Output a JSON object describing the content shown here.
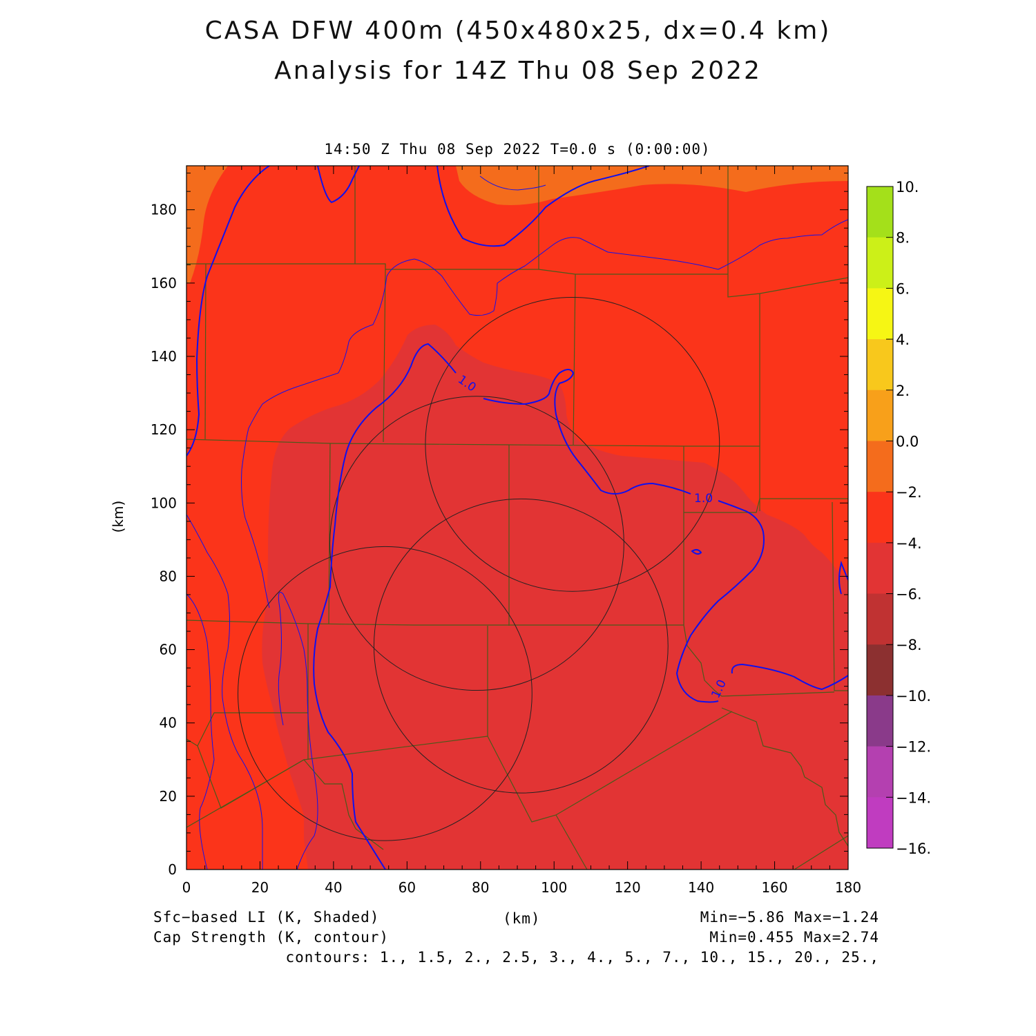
{
  "header": {
    "title_line1": "CASA DFW 400m (450x480x25, dx=0.4 km)",
    "title_line2": "Analysis for 14Z Thu 08 Sep 2022",
    "subtitle": "14:50 Z Thu 08 Sep 2022    T=0.0 s (0:00:00)"
  },
  "axes": {
    "x_label": "(km)",
    "y_label": "(km)",
    "x_ticks": [
      "0",
      "20",
      "40",
      "60",
      "80",
      "100",
      "120",
      "140",
      "160",
      "180"
    ],
    "y_ticks": [
      "0",
      "20",
      "40",
      "60",
      "80",
      "100",
      "120",
      "140",
      "160",
      "180"
    ],
    "x_range": [
      0,
      180
    ],
    "y_range": [
      0,
      192
    ]
  },
  "colorbar": {
    "labels": [
      "10.",
      "8.",
      "6.",
      "4.",
      "2.",
      "0.0",
      "−2.",
      "−4.",
      "−6.",
      "−8.",
      "−10.",
      "−12.",
      "−14.",
      "−16."
    ],
    "colors": [
      "#a4e01a",
      "#ccf018",
      "#f6f614",
      "#f8c81c",
      "#f8a01a",
      "#f46c1c",
      "#fb341a",
      "#e23434",
      "#c03232",
      "#8c3030",
      "#8a3a8a",
      "#b440b0",
      "#c03cc0",
      "#d83ee0"
    ]
  },
  "fields": {
    "field_colors": {
      "outer": "#fb341a",
      "inner": "#e23434",
      "edge": "#f46c1c"
    },
    "contour_color": "#1010ee",
    "contour_value_label": "1.0"
  },
  "footer": {
    "left_line1": "Sfc−based LI (K, Shaded)",
    "left_line2": "Cap Strength (K, contour)",
    "center": "(km)",
    "right_line1": "Min=−5.86 Max=−1.24",
    "right_line2": "Min=0.455 Max=2.74",
    "right_line3": "contours: 1., 1.5, 2., 2.5, 3., 4., 5., 7., 10., 15., 20., 25.,"
  },
  "radar_rings": [
    {
      "cx_km": 105,
      "cy_km": 116,
      "r_km": 40
    },
    {
      "cx_km": 79,
      "cy_km": 89,
      "r_km": 40
    },
    {
      "cx_km": 91,
      "cy_km": 61,
      "r_km": 40
    },
    {
      "cx_km": 54,
      "cy_km": 48,
      "r_km": 40
    }
  ]
}
